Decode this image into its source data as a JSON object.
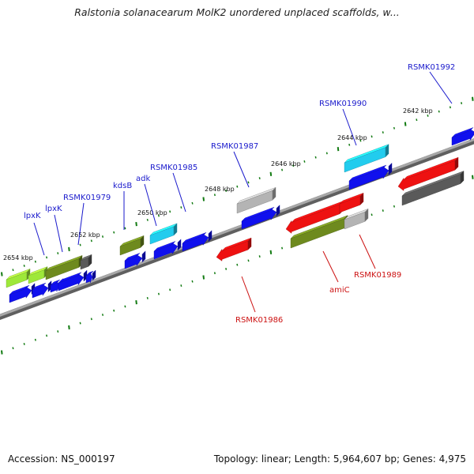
{
  "title": "Ralstonia solanacearum MolK2 unordered unplaced scaffolds, w...",
  "footer": {
    "accession": "Accession: NS_000197",
    "summary": "Topology: linear; Length: 5,964,607 bp; Genes: 4,975"
  },
  "colors": {
    "forward_label": "#1a1acc",
    "reverse_label": "#cc1111",
    "tick": "#117a11",
    "axis": "#8a8a8a",
    "blue": "#1010ee",
    "red": "#ee1111",
    "olive": "#6e8a1e",
    "lime": "#9ee83a",
    "cyan": "#22ccee",
    "gray": "#b4b4b4",
    "darkgray": "#5a5a5a"
  },
  "kbp_labels": [
    "2654 kbp",
    "2652 kbp",
    "2650 kbp",
    "2648 kbp",
    "2646 kbp",
    "2644 kbp",
    "2642 kbp"
  ],
  "forward_labels": [
    "lpxK",
    "lpxK",
    "RSMK01979",
    "kdsB",
    "adk",
    "RSMK01985",
    "RSMK01987",
    "RSMK01990",
    "RSMK01992"
  ],
  "reverse_labels": [
    "RSMK01986",
    "amiC",
    "RSMK01989"
  ]
}
